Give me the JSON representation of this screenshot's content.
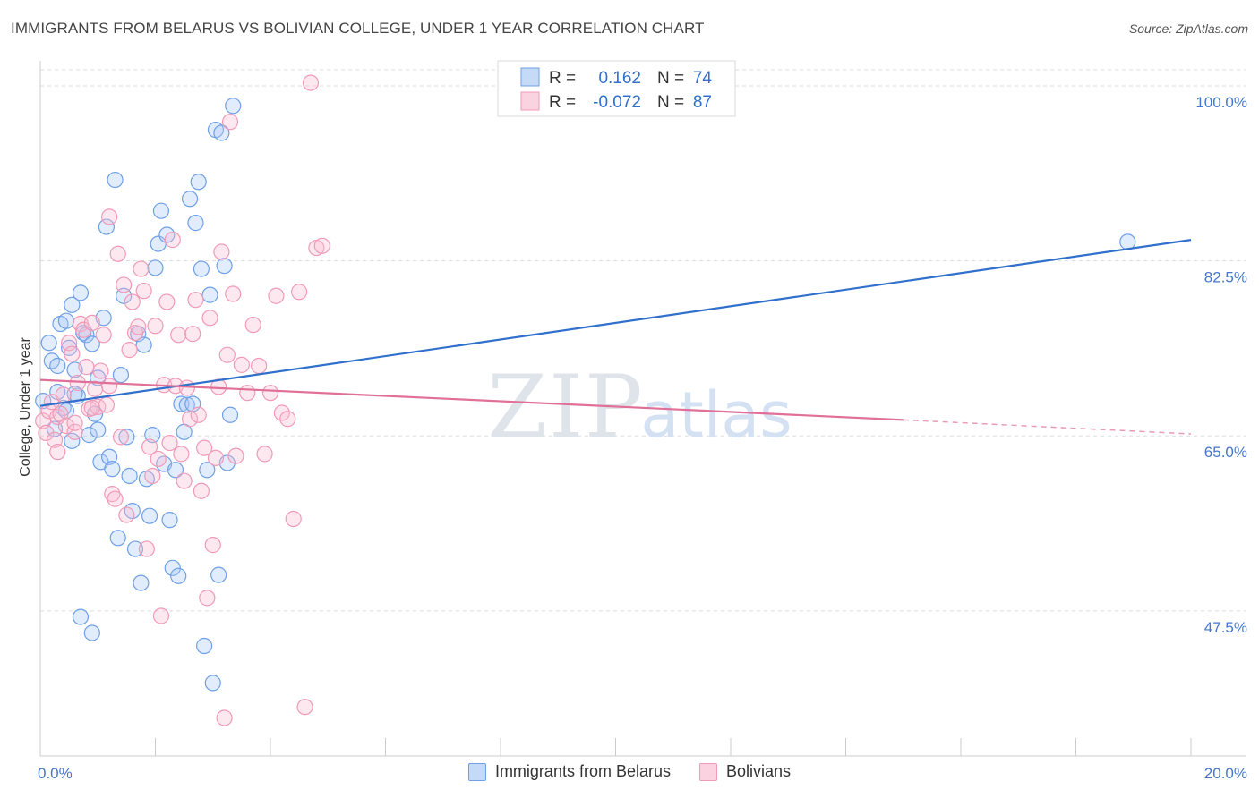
{
  "title": "IMMIGRANTS FROM BELARUS VS BOLIVIAN COLLEGE, UNDER 1 YEAR CORRELATION CHART",
  "source": "Source: ZipAtlas.com",
  "watermark": {
    "zip": "ZIP",
    "atlas": "atlas"
  },
  "legend_top": [
    {
      "r_label": "R =",
      "r_value": "0.162",
      "n_label": "N =",
      "n_value": "74"
    },
    {
      "r_label": "R =",
      "r_value": "-0.072",
      "n_label": "N =",
      "n_value": "87"
    }
  ],
  "chart_data": {
    "type": "scatter",
    "title": "IMMIGRANTS FROM BELARUS VS BOLIVIAN COLLEGE, UNDER 1 YEAR CORRELATION CHART",
    "xlabel": "",
    "ylabel": "College, Under 1 year",
    "xlim": [
      0,
      20
    ],
    "ylim": [
      33,
      102.5
    ],
    "x_tick_labels": [
      {
        "value": 0,
        "label": "0.0%"
      },
      {
        "value": 20,
        "label": "20.0%"
      }
    ],
    "y_tick_labels": [
      {
        "value": 100,
        "label": "100.0%"
      },
      {
        "value": 82.5,
        "label": "82.5%"
      },
      {
        "value": 65,
        "label": "65.0%"
      },
      {
        "value": 47.5,
        "label": "47.5%"
      }
    ],
    "legend": "top-center",
    "colors": {
      "belarus": "#6fa0e6",
      "bolivia": "#f09ab8",
      "belarus_line": "#3070cc",
      "bolivia_line": "#e07098"
    },
    "series": [
      {
        "name": "Immigrants from Belarus",
        "color": "#6fa0e6",
        "trend": {
          "x": [
            0,
            20
          ],
          "y": [
            68.0,
            84.6
          ],
          "style": "solid"
        },
        "points": [
          [
            0.05,
            68.5
          ],
          [
            0.15,
            74.3
          ],
          [
            0.2,
            72.5
          ],
          [
            0.25,
            65.7
          ],
          [
            0.3,
            69.4
          ],
          [
            0.35,
            76.2
          ],
          [
            0.4,
            67.8
          ],
          [
            0.45,
            76.5
          ],
          [
            0.5,
            73.8
          ],
          [
            0.55,
            78.1
          ],
          [
            0.6,
            71.6
          ],
          [
            0.65,
            69.0
          ],
          [
            0.7,
            79.3
          ],
          [
            0.75,
            75.3
          ],
          [
            0.8,
            75.1
          ],
          [
            0.85,
            65.1
          ],
          [
            0.9,
            74.2
          ],
          [
            0.95,
            67.2
          ],
          [
            1.0,
            70.8
          ],
          [
            1.05,
            62.4
          ],
          [
            1.1,
            76.8
          ],
          [
            1.15,
            85.9
          ],
          [
            1.2,
            62.9
          ],
          [
            1.25,
            61.7
          ],
          [
            1.3,
            90.6
          ],
          [
            1.35,
            54.8
          ],
          [
            1.4,
            71.1
          ],
          [
            1.45,
            79.0
          ],
          [
            1.5,
            64.9
          ],
          [
            1.55,
            61.0
          ],
          [
            1.6,
            57.5
          ],
          [
            1.65,
            53.7
          ],
          [
            1.7,
            75.2
          ],
          [
            1.75,
            50.3
          ],
          [
            1.8,
            74.1
          ],
          [
            1.85,
            60.7
          ],
          [
            1.9,
            57.0
          ],
          [
            1.95,
            65.1
          ],
          [
            2.0,
            81.8
          ],
          [
            2.05,
            84.2
          ],
          [
            2.1,
            87.5
          ],
          [
            2.15,
            62.2
          ],
          [
            2.2,
            85.1
          ],
          [
            2.25,
            56.6
          ],
          [
            2.3,
            51.8
          ],
          [
            2.35,
            61.6
          ],
          [
            2.4,
            51.0
          ],
          [
            2.45,
            68.2
          ],
          [
            2.5,
            65.4
          ],
          [
            2.55,
            68.1
          ],
          [
            2.6,
            88.7
          ],
          [
            2.65,
            68.2
          ],
          [
            2.7,
            86.3
          ],
          [
            2.75,
            90.4
          ],
          [
            2.8,
            81.7
          ],
          [
            2.85,
            44.0
          ],
          [
            2.9,
            61.6
          ],
          [
            2.95,
            79.1
          ],
          [
            3.0,
            40.3
          ],
          [
            3.05,
            95.6
          ],
          [
            3.1,
            51.1
          ],
          [
            3.15,
            95.3
          ],
          [
            3.2,
            82.0
          ],
          [
            3.25,
            62.3
          ],
          [
            3.3,
            67.1
          ],
          [
            3.35,
            98.0
          ],
          [
            0.7,
            46.9
          ],
          [
            0.9,
            45.3
          ],
          [
            0.55,
            64.5
          ],
          [
            1.0,
            65.6
          ],
          [
            0.3,
            72.0
          ],
          [
            0.6,
            69.2
          ],
          [
            18.9,
            84.4
          ],
          [
            0.45,
            67.5
          ]
        ]
      },
      {
        "name": "Bolivians",
        "color": "#f09ab8",
        "trend": {
          "x": [
            0,
            15
          ],
          "y": [
            70.6,
            66.6
          ],
          "style": "solid",
          "dashed_extension": {
            "x": [
              15,
              20
            ],
            "y": [
              66.6,
              65.2
            ]
          }
        },
        "points": [
          [
            0.05,
            66.5
          ],
          [
            0.1,
            65.3
          ],
          [
            0.15,
            67.5
          ],
          [
            0.2,
            68.4
          ],
          [
            0.25,
            64.6
          ],
          [
            0.3,
            66.9
          ],
          [
            0.35,
            67.2
          ],
          [
            0.4,
            69.1
          ],
          [
            0.45,
            66.0
          ],
          [
            0.5,
            74.3
          ],
          [
            0.55,
            73.2
          ],
          [
            0.6,
            65.4
          ],
          [
            0.65,
            70.3
          ],
          [
            0.7,
            76.2
          ],
          [
            0.75,
            75.6
          ],
          [
            0.8,
            71.9
          ],
          [
            0.85,
            67.7
          ],
          [
            0.9,
            76.3
          ],
          [
            0.95,
            69.7
          ],
          [
            1.0,
            67.9
          ],
          [
            1.05,
            71.5
          ],
          [
            1.1,
            75.1
          ],
          [
            1.15,
            68.1
          ],
          [
            1.2,
            86.9
          ],
          [
            1.25,
            59.2
          ],
          [
            1.3,
            58.7
          ],
          [
            1.35,
            83.2
          ],
          [
            1.4,
            64.9
          ],
          [
            1.45,
            80.1
          ],
          [
            1.5,
            57.1
          ],
          [
            1.55,
            73.6
          ],
          [
            1.6,
            78.4
          ],
          [
            1.65,
            75.3
          ],
          [
            1.7,
            75.9
          ],
          [
            1.75,
            81.7
          ],
          [
            1.8,
            79.5
          ],
          [
            1.85,
            53.7
          ],
          [
            1.9,
            63.9
          ],
          [
            1.95,
            61.0
          ],
          [
            2.0,
            76.0
          ],
          [
            2.05,
            62.7
          ],
          [
            2.1,
            47.0
          ],
          [
            2.15,
            70.1
          ],
          [
            2.2,
            78.4
          ],
          [
            2.25,
            64.3
          ],
          [
            2.3,
            84.6
          ],
          [
            2.35,
            70.0
          ],
          [
            2.4,
            75.1
          ],
          [
            2.45,
            63.2
          ],
          [
            2.5,
            60.5
          ],
          [
            2.55,
            69.8
          ],
          [
            2.6,
            66.7
          ],
          [
            2.65,
            75.2
          ],
          [
            2.7,
            78.6
          ],
          [
            2.75,
            67.1
          ],
          [
            2.8,
            59.5
          ],
          [
            2.85,
            63.8
          ],
          [
            2.9,
            48.8
          ],
          [
            2.95,
            76.8
          ],
          [
            3.0,
            54.1
          ],
          [
            3.05,
            62.8
          ],
          [
            3.1,
            69.9
          ],
          [
            3.15,
            83.4
          ],
          [
            3.2,
            36.8
          ],
          [
            3.25,
            73.1
          ],
          [
            3.3,
            96.4
          ],
          [
            3.35,
            79.2
          ],
          [
            3.4,
            63.0
          ],
          [
            3.5,
            72.1
          ],
          [
            3.6,
            69.3
          ],
          [
            3.7,
            76.1
          ],
          [
            3.8,
            72.0
          ],
          [
            3.9,
            63.2
          ],
          [
            4.0,
            69.3
          ],
          [
            4.1,
            79.0
          ],
          [
            4.2,
            67.3
          ],
          [
            4.3,
            66.7
          ],
          [
            4.4,
            56.7
          ],
          [
            4.5,
            79.4
          ],
          [
            4.6,
            37.9
          ],
          [
            4.7,
            100.3
          ],
          [
            4.8,
            83.8
          ],
          [
            4.9,
            84.0
          ],
          [
            0.3,
            63.4
          ],
          [
            0.6,
            66.3
          ],
          [
            0.9,
            67.8
          ],
          [
            1.2,
            70.0
          ]
        ]
      }
    ]
  },
  "legend_bottom": [
    {
      "label": "Immigrants from Belarus",
      "color": "#6fa0e6"
    },
    {
      "label": "Bolivians",
      "color": "#f09ab8"
    }
  ]
}
